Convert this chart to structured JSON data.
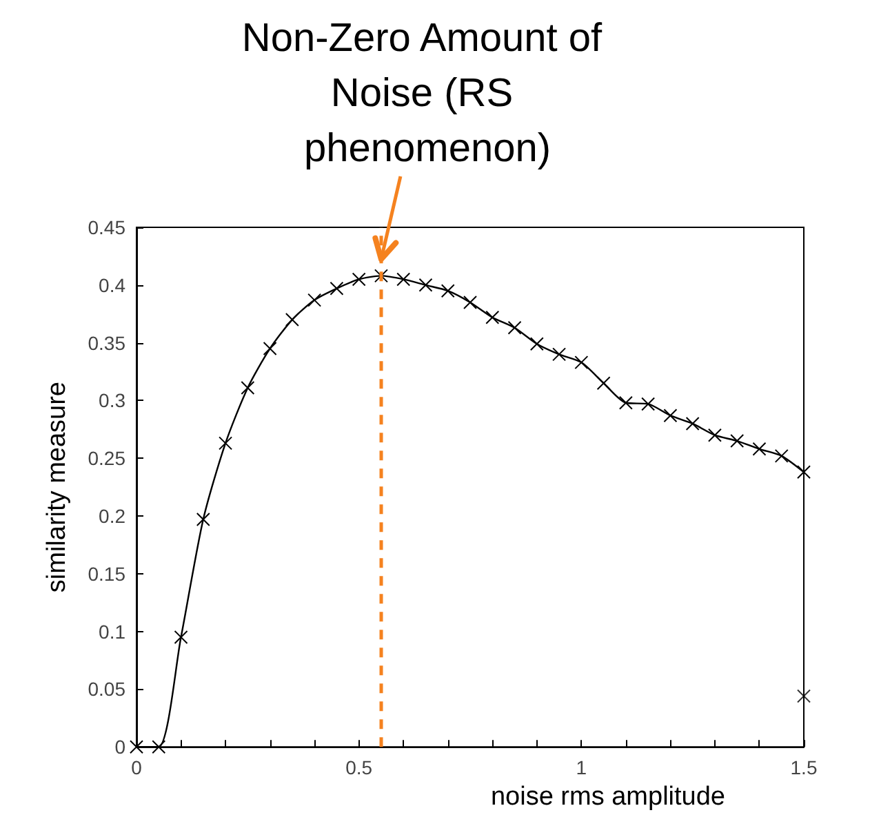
{
  "chart_data": {
    "type": "line",
    "xlabel": "noise rms amplitude",
    "ylabel": "similarity measure",
    "series": [
      {
        "color": "#000000",
        "marker": "cross",
        "x": [
          0,
          0.05,
          0.1,
          0.15,
          0.2,
          0.25,
          0.3,
          0.35,
          0.4,
          0.45,
          0.5,
          0.55,
          0.6,
          0.65,
          0.7,
          0.75,
          0.8,
          0.85,
          0.9,
          0.95,
          1.0,
          1.05,
          1.1,
          1.15,
          1.2,
          1.25,
          1.3,
          1.35,
          1.4,
          1.45,
          1.5
        ],
        "values": [
          0,
          0,
          0.095,
          0.197,
          0.263,
          0.311,
          0.345,
          0.37,
          0.387,
          0.397,
          0.405,
          0.408,
          0.405,
          0.4,
          0.395,
          0.385,
          0.372,
          0.363,
          0.349,
          0.34,
          0.333,
          0.315,
          0.298,
          0.297,
          0.287,
          0.28,
          0.27,
          0.265,
          0.258,
          0.252,
          0.238
        ]
      },
      {
        "type": "scatter",
        "color": "#000000",
        "marker": "cross",
        "x": [
          1.5
        ],
        "values": [
          0.044
        ]
      }
    ],
    "xlim": [
      0,
      1.5
    ],
    "ylim": [
      0,
      0.45
    ],
    "xticks": [
      0,
      {
        "value": 0.1,
        "label": null
      },
      {
        "value": 0.2,
        "label": null
      },
      {
        "value": 0.3,
        "label": null
      },
      {
        "value": 0.4,
        "label": null
      },
      0.5,
      {
        "value": 0.6,
        "label": null
      },
      {
        "value": 0.7,
        "label": null
      },
      {
        "value": 0.8,
        "label": null
      },
      {
        "value": 0.9,
        "label": null
      },
      1,
      {
        "value": 1.1,
        "label": null
      },
      {
        "value": 1.2,
        "label": null
      },
      {
        "value": 1.3,
        "label": null
      },
      {
        "value": 1.4,
        "label": null
      },
      1.5
    ],
    "yticks": [
      0,
      0.05,
      0.1,
      0.15,
      0.2,
      0.25,
      0.3,
      0.35,
      0.4,
      0.45
    ],
    "ref_lines": [
      {
        "axis": "x",
        "value": 0.55,
        "color": "#f5821f",
        "line_style": "dashed"
      }
    ],
    "annotations": [
      {
        "text": "Non-Zero Amount of Noise (RS phenomenon)",
        "x": 0.55,
        "y": 0.408
      }
    ],
    "grid": false
  }
}
